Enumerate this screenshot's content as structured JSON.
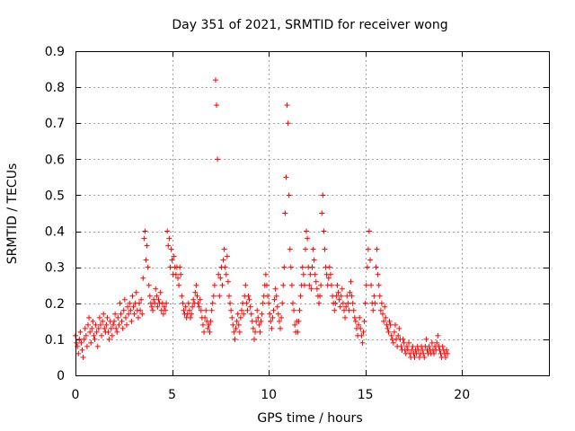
{
  "chart_data": {
    "type": "scatter",
    "title": "Day 351 of 2021, SRMTID for receiver wong",
    "xlabel": "GPS time / hours",
    "ylabel": "SRMTID / TECUs",
    "xlim": [
      0,
      24.5
    ],
    "ylim": [
      0,
      0.9
    ],
    "xticks": [
      0,
      5,
      10,
      15,
      20
    ],
    "xtick_labels": [
      "0",
      "5",
      "10",
      "15",
      "20"
    ],
    "yticks": [
      0,
      0.1,
      0.2,
      0.3,
      0.4,
      0.5,
      0.6,
      0.7,
      0.8,
      0.9
    ],
    "ytick_labels": [
      "0",
      "0.1",
      "0.2",
      "0.3",
      "0.4",
      "0.5",
      "0.6",
      "0.7",
      "0.8",
      "0.9"
    ],
    "grid": true,
    "marker": "plus",
    "color": "#ff0000",
    "series": [
      {
        "name": "SRMTID",
        "x_start": 0.0,
        "x_step": 0.05,
        "values": [
          0.11,
          0.09,
          0.08,
          0.06,
          0.1,
          0.12,
          0.09,
          0.07,
          0.05,
          0.1,
          0.13,
          0.11,
          0.08,
          0.14,
          0.16,
          0.12,
          0.09,
          0.13,
          0.15,
          0.11,
          0.1,
          0.14,
          0.12,
          0.08,
          0.13,
          0.16,
          0.14,
          0.11,
          0.15,
          0.17,
          0.13,
          0.12,
          0.14,
          0.16,
          0.12,
          0.1,
          0.15,
          0.13,
          0.11,
          0.14,
          0.15,
          0.17,
          0.13,
          0.12,
          0.16,
          0.14,
          0.2,
          0.17,
          0.15,
          0.13,
          0.18,
          0.21,
          0.16,
          0.14,
          0.19,
          0.17,
          0.2,
          0.18,
          0.15,
          0.22,
          0.19,
          0.17,
          0.2,
          0.23,
          0.18,
          0.16,
          0.2,
          0.18,
          0.21,
          0.17,
          0.27,
          0.38,
          0.4,
          0.32,
          0.36,
          0.3,
          0.25,
          0.22,
          0.2,
          0.19,
          0.18,
          0.21,
          0.2,
          0.24,
          0.22,
          0.19,
          0.21,
          0.2,
          0.23,
          0.18,
          0.2,
          0.17,
          0.19,
          0.18,
          0.2,
          0.4,
          0.36,
          0.38,
          0.3,
          0.35,
          0.32,
          0.28,
          0.33,
          0.3,
          0.28,
          0.3,
          0.27,
          0.25,
          0.3,
          0.28,
          0.22,
          0.2,
          0.18,
          0.17,
          0.19,
          0.16,
          0.17,
          0.2,
          0.18,
          0.16,
          0.17,
          0.19,
          0.21,
          0.2,
          0.23,
          0.25,
          0.22,
          0.2,
          0.19,
          0.21,
          0.18,
          0.16,
          0.14,
          0.12,
          0.16,
          0.18,
          0.15,
          0.13,
          0.14,
          0.12,
          0.15,
          0.18,
          0.2,
          0.22,
          0.25,
          0.82,
          0.75,
          0.6,
          0.28,
          0.22,
          0.27,
          0.3,
          0.25,
          0.32,
          0.35,
          0.3,
          0.28,
          0.33,
          0.26,
          0.22,
          0.2,
          0.18,
          0.16,
          0.14,
          0.12,
          0.1,
          0.13,
          0.15,
          0.17,
          0.14,
          0.12,
          0.16,
          0.18,
          0.2,
          0.17,
          0.22,
          0.25,
          0.2,
          0.18,
          0.22,
          0.21,
          0.19,
          0.17,
          0.15,
          0.13,
          0.1,
          0.12,
          0.15,
          0.18,
          0.16,
          0.14,
          0.12,
          0.15,
          0.17,
          0.2,
          0.22,
          0.25,
          0.28,
          0.25,
          0.22,
          0.2,
          0.17,
          0.15,
          0.13,
          0.16,
          0.18,
          0.21,
          0.24,
          0.22,
          0.19,
          0.17,
          0.15,
          0.13,
          0.16,
          0.2,
          0.25,
          0.3,
          0.45,
          0.55,
          0.75,
          0.7,
          0.5,
          0.35,
          0.3,
          0.25,
          0.2,
          0.18,
          0.14,
          0.12,
          0.15,
          0.12,
          0.15,
          0.18,
          0.22,
          0.25,
          0.3,
          0.28,
          0.25,
          0.35,
          0.4,
          0.38,
          0.3,
          0.25,
          0.28,
          0.24,
          0.3,
          0.35,
          0.32,
          0.28,
          0.26,
          0.24,
          0.22,
          0.2,
          0.22,
          0.25,
          0.45,
          0.5,
          0.4,
          0.35,
          0.3,
          0.28,
          0.25,
          0.27,
          0.3,
          0.28,
          0.25,
          0.22,
          0.2,
          0.18,
          0.2,
          0.22,
          0.25,
          0.23,
          0.21,
          0.19,
          0.22,
          0.24,
          0.2,
          0.18,
          0.16,
          0.19,
          0.22,
          0.2,
          0.18,
          0.23,
          0.26,
          0.22,
          0.2,
          0.18,
          0.16,
          0.15,
          0.13,
          0.11,
          0.14,
          0.16,
          0.13,
          0.11,
          0.09,
          0.12,
          0.15,
          0.2,
          0.25,
          0.3,
          0.35,
          0.4,
          0.32,
          0.25,
          0.2,
          0.18,
          0.22,
          0.2,
          0.3,
          0.35,
          0.28,
          0.25,
          0.22,
          0.18,
          0.2,
          0.17,
          0.15,
          0.19,
          0.16,
          0.14,
          0.13,
          0.12,
          0.15,
          0.14,
          0.11,
          0.1,
          0.09,
          0.12,
          0.14,
          0.1,
          0.08,
          0.11,
          0.13,
          0.1,
          0.08,
          0.07,
          0.1,
          0.09,
          0.07,
          0.06,
          0.08,
          0.07,
          0.09,
          0.06,
          0.05,
          0.07,
          0.08,
          0.06,
          0.05,
          0.07,
          0.06,
          0.08,
          0.07,
          0.05,
          0.06,
          0.08,
          0.07,
          0.06,
          0.05,
          0.08,
          0.1,
          0.07,
          0.06,
          0.08,
          0.07,
          0.06,
          0.09,
          0.07,
          0.06,
          0.08,
          0.07,
          0.09,
          0.11,
          0.08,
          0.07,
          0.06,
          0.05,
          0.08,
          0.07,
          0.06,
          0.05,
          0.07,
          0.06
        ]
      }
    ]
  }
}
